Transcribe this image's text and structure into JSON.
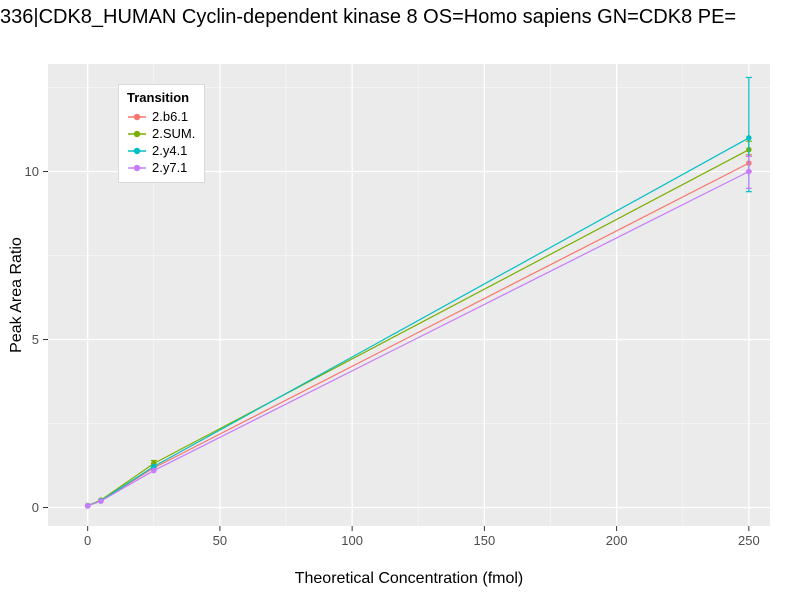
{
  "chart_data": {
    "type": "line",
    "title": "336|CDK8_HUMAN Cyclin-dependent kinase 8 OS=Homo sapiens GN=CDK8 PE=",
    "xlabel": "Theoretical Concentration (fmol)",
    "ylabel": "Peak Area Ratio",
    "xlim": [
      -15,
      258
    ],
    "ylim": [
      -0.55,
      13.2
    ],
    "xticks": [
      0,
      50,
      100,
      150,
      200,
      250
    ],
    "xticks_minor": [
      25,
      75,
      125,
      175,
      225
    ],
    "yticks": [
      0,
      5,
      10
    ],
    "yticks_minor": [
      2.5,
      7.5,
      12.5
    ],
    "grid": true,
    "panel_color": "#EBEBEB",
    "grid_major_color": "#FFFFFF",
    "grid_minor_color": "#F7F7F7",
    "tick_color": "#333333",
    "tick_label_color": "#4D4D4D",
    "legend": {
      "title": "Transition",
      "position": "top-left-inside"
    },
    "series": [
      {
        "name": "2.b6.1",
        "color": "#F8766D",
        "x": [
          0,
          5,
          25,
          250
        ],
        "y": [
          0.05,
          0.2,
          1.18,
          10.25
        ],
        "err": [
          null,
          null,
          null,
          [
            10.0,
            10.5
          ]
        ]
      },
      {
        "name": "2.SUM.",
        "color": "#7CAE00",
        "x": [
          0,
          5,
          25,
          250
        ],
        "y": [
          0.06,
          0.22,
          1.31,
          10.65
        ],
        "err": [
          null,
          null,
          [
            1.22,
            1.4
          ],
          [
            10.45,
            10.9
          ]
        ]
      },
      {
        "name": "2.y4.1",
        "color": "#00BFC4",
        "x": [
          0,
          5,
          25,
          250
        ],
        "y": [
          0.05,
          0.2,
          1.22,
          11.0
        ],
        "err": [
          null,
          null,
          null,
          [
            9.4,
            12.8
          ]
        ]
      },
      {
        "name": "2.y7.1",
        "color": "#C77CFF",
        "x": [
          0,
          5,
          25,
          250
        ],
        "y": [
          0.05,
          0.19,
          1.1,
          10.0
        ],
        "err": [
          null,
          null,
          null,
          [
            9.5,
            10.45
          ]
        ]
      }
    ]
  }
}
